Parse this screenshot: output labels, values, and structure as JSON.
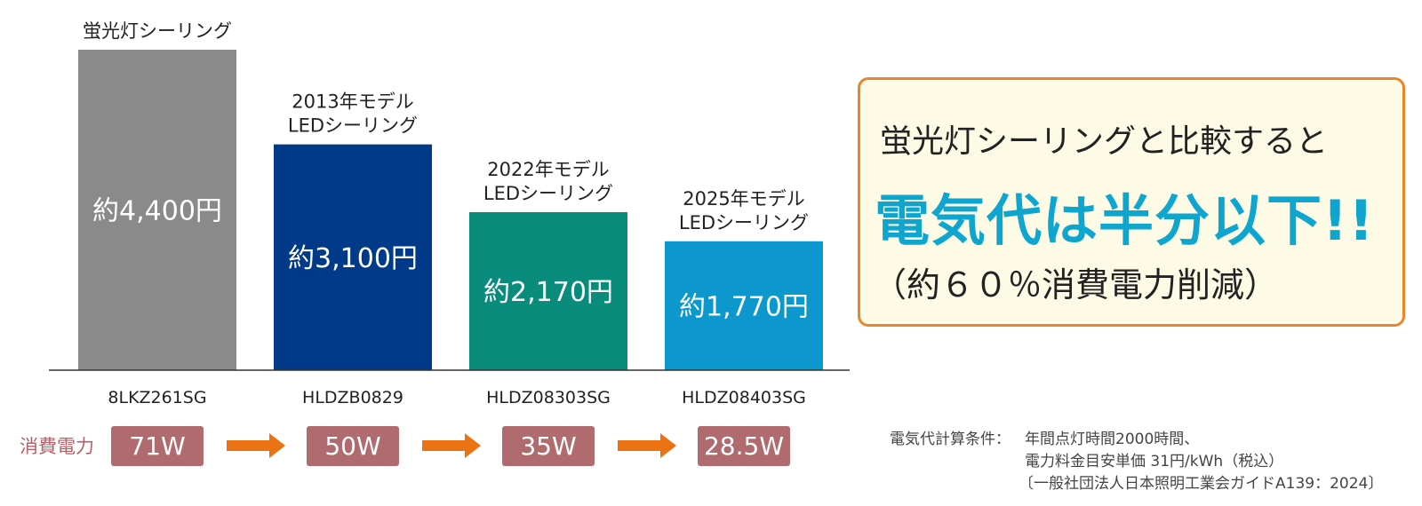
{
  "colors": {
    "bar_fluorescent": "#8a8a8a",
    "bar_2013": "#023a8a",
    "bar_2022": "#0a8c7c",
    "bar_2025": "#0c98cc",
    "power_box": "#b06b6e",
    "arrow": "#ec7314",
    "callout_border": "#e8862e",
    "callout_bg": "#fdfbe6",
    "callout_accent": "#0ea5cf",
    "power_row_label": "#b76068"
  },
  "chart_data": {
    "type": "bar",
    "categories": [
      [
        "蛍光灯シーリング"
      ],
      [
        "2013年モデル",
        "LEDシーリング"
      ],
      [
        "2022年モデル",
        "LEDシーリング"
      ],
      [
        "2025年モデル",
        "LEDシーリング"
      ]
    ],
    "values": [
      4400,
      3100,
      2170,
      1770
    ],
    "value_labels": [
      "約4,400円",
      "約3,100円",
      "約2,170円",
      "約1,770円"
    ],
    "models": [
      "8LKZ261SG",
      "HLDZB0829",
      "HLDZ08303SG",
      "HLDZ08403SG"
    ],
    "power_consumption": [
      71,
      50,
      35,
      28.5
    ],
    "power_labels": [
      "71W",
      "50W",
      "35W",
      "28.5W"
    ],
    "power_row_label": "消費電力",
    "ylim": [
      0,
      4400
    ],
    "grid": false,
    "title": "",
    "xlabel": "",
    "ylabel": ""
  },
  "callout": {
    "line1": "蛍光灯シーリングと比較すると",
    "line2": "電気代は半分以下!!",
    "line3": "（約６０％消費電力削減）"
  },
  "note": {
    "label": "電気代計算条件：",
    "line1": "年間点灯時間2000時間、",
    "line2": "電力料金目安単価 31円/kWh（税込）",
    "line3": "〔一般社団法人日本照明工業会ガイドA139：2024〕"
  }
}
